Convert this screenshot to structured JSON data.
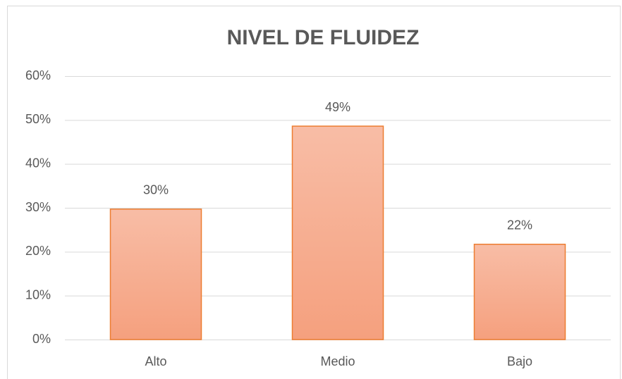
{
  "chart_data": {
    "type": "bar",
    "title": "NIVEL DE FLUIDEZ",
    "categories": [
      "Alto",
      "Medio",
      "Bajo"
    ],
    "values": [
      29.7,
      48.6,
      21.7
    ],
    "value_labels": [
      "30%",
      "49%",
      "22%"
    ],
    "color": "#f5a47f",
    "ylim": [
      0,
      60
    ],
    "yticks": [
      {
        "value": 0,
        "label": "0%"
      },
      {
        "value": 10,
        "label": "10%"
      },
      {
        "value": 20,
        "label": "20%"
      },
      {
        "value": 30,
        "label": "30%"
      },
      {
        "value": 40,
        "label": "40%"
      },
      {
        "value": 50,
        "label": "50%"
      },
      {
        "value": 60,
        "label": "60%"
      }
    ],
    "grid": true
  }
}
